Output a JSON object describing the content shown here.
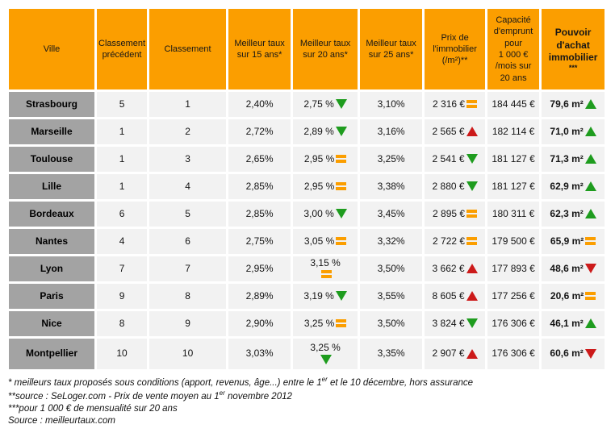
{
  "colors": {
    "orange": "#FB9E00",
    "gray": "#A3A3A3",
    "cell_bg": "#F2F2F2",
    "green": "#1E9C1E",
    "red": "#CC1A1A"
  },
  "columns": [
    {
      "key": "ville",
      "label": "Ville"
    },
    {
      "key": "classement_precedent",
      "label": "Classement précédent"
    },
    {
      "key": "classement",
      "label": "Classement"
    },
    {
      "key": "taux_15",
      "label": "Meilleur taux sur 15 ans*"
    },
    {
      "key": "taux_20",
      "label": "Meilleur taux sur 20 ans*"
    },
    {
      "key": "taux_25",
      "label": "Meilleur taux sur 25 ans*"
    },
    {
      "key": "prix",
      "label": "Prix de l'immobilier (/m²)**"
    },
    {
      "key": "capacite",
      "label": "Capacité d'emprunt pour 1 000 € /mois sur 20 ans"
    },
    {
      "key": "pouvoir",
      "label": "Pouvoir d'achat immobilier",
      "sub": "***",
      "bold": true
    }
  ],
  "rows": [
    {
      "ville": "Strasbourg",
      "classement_precedent": "5",
      "classement": "1",
      "taux_15": "2,40%",
      "taux_20": {
        "text": "2,75 %",
        "icon": "down-green"
      },
      "taux_25": "3,10%",
      "prix": {
        "text": "2 316 €",
        "icon": "equal"
      },
      "capacite": "184 445 €",
      "pouvoir": {
        "text": "79,6 m²",
        "icon": "up-green"
      }
    },
    {
      "ville": "Marseille",
      "classement_precedent": "1",
      "classement": "2",
      "taux_15": "2,72%",
      "taux_20": {
        "text": "2,89 %",
        "icon": "down-green"
      },
      "taux_25": "3,16%",
      "prix": {
        "text": "2 565 €",
        "icon": "up-red"
      },
      "capacite": "182 114 €",
      "pouvoir": {
        "text": "71,0 m²",
        "icon": "up-green"
      }
    },
    {
      "ville": "Toulouse",
      "classement_precedent": "1",
      "classement": "3",
      "taux_15": "2,65%",
      "taux_20": {
        "text": "2,95 %",
        "icon": "equal"
      },
      "taux_25": "3,25%",
      "prix": {
        "text": "2 541 €",
        "icon": "down-green"
      },
      "capacite": "181 127 €",
      "pouvoir": {
        "text": "71,3 m²",
        "icon": "up-green"
      }
    },
    {
      "ville": "Lille",
      "classement_precedent": "1",
      "classement": "4",
      "taux_15": "2,85%",
      "taux_20": {
        "text": "2,95 %",
        "icon": "equal"
      },
      "taux_25": "3,38%",
      "prix": {
        "text": "2 880 €",
        "icon": "down-green"
      },
      "capacite": "181 127 €",
      "pouvoir": {
        "text": "62,9 m²",
        "icon": "up-green"
      }
    },
    {
      "ville": "Bordeaux",
      "classement_precedent": "6",
      "classement": "5",
      "taux_15": "2,85%",
      "taux_20": {
        "text": "3,00 %",
        "icon": "down-green"
      },
      "taux_25": "3,45%",
      "prix": {
        "text": "2 895 €",
        "icon": "equal"
      },
      "capacite": "180 311 €",
      "pouvoir": {
        "text": "62,3 m²",
        "icon": "up-green"
      }
    },
    {
      "ville": "Nantes",
      "classement_precedent": "4",
      "classement": "6",
      "taux_15": "2,75%",
      "taux_20": {
        "text": "3,05 %",
        "icon": "equal"
      },
      "taux_25": "3,32%",
      "prix": {
        "text": "2 722 €",
        "icon": "equal"
      },
      "capacite": "179 500 €",
      "pouvoir": {
        "text": "65,9 m²",
        "icon": "equal"
      }
    },
    {
      "ville": "Lyon",
      "classement_precedent": "7",
      "classement": "7",
      "taux_15": "2,95%",
      "taux_20": {
        "text": "3,15 %",
        "icon": "equal",
        "stack": true
      },
      "taux_25": "3,50%",
      "prix": {
        "text": "3 662 €",
        "icon": "up-red"
      },
      "capacite": "177 893 €",
      "pouvoir": {
        "text": "48,6 m²",
        "icon": "down-red"
      }
    },
    {
      "ville": "Paris",
      "classement_precedent": "9",
      "classement": "8",
      "taux_15": "2,89%",
      "taux_20": {
        "text": "3,19 %",
        "icon": "down-green"
      },
      "taux_25": "3,55%",
      "prix": {
        "text": "8 605 €",
        "icon": "up-red"
      },
      "capacite": "177 256 €",
      "pouvoir": {
        "text": "20,6 m²",
        "icon": "equal"
      }
    },
    {
      "ville": "Nice",
      "classement_precedent": "8",
      "classement": "9",
      "taux_15": "2,90%",
      "taux_20": {
        "text": "3,25 %",
        "icon": "equal"
      },
      "taux_25": "3,50%",
      "prix": {
        "text": "3 824 €",
        "icon": "down-green"
      },
      "capacite": "176 306 €",
      "pouvoir": {
        "text": "46,1 m²",
        "icon": "up-green"
      }
    },
    {
      "ville": "Montpellier",
      "classement_precedent": "10",
      "classement": "10",
      "taux_15": "3,03%",
      "taux_20": {
        "text": "3,25 %",
        "icon": "down-green",
        "stack": true
      },
      "taux_25": "3,35%",
      "prix": {
        "text": "2 907 €",
        "icon": "up-red"
      },
      "capacite": "176 306 €",
      "pouvoir": {
        "text": "60,6 m²",
        "icon": "down-red"
      },
      "tall": true
    }
  ],
  "footnotes": [
    [
      {
        "text": "* meilleurs taux proposés sous conditions (apport, revenus, âge...) entre le 1"
      },
      {
        "sup": "er"
      },
      {
        "text": " et le 10 décembre, hors assurance"
      }
    ],
    [
      {
        "text": "**source : SeLoger.com -  Prix de vente moyen au 1"
      },
      {
        "sup": "er"
      },
      {
        "text": " novembre 2012"
      }
    ],
    [
      {
        "text": "***pour 1 000 € de mensualité sur 20 ans"
      }
    ],
    [
      {
        "text": "Source : meilleurtaux.com"
      }
    ]
  ]
}
